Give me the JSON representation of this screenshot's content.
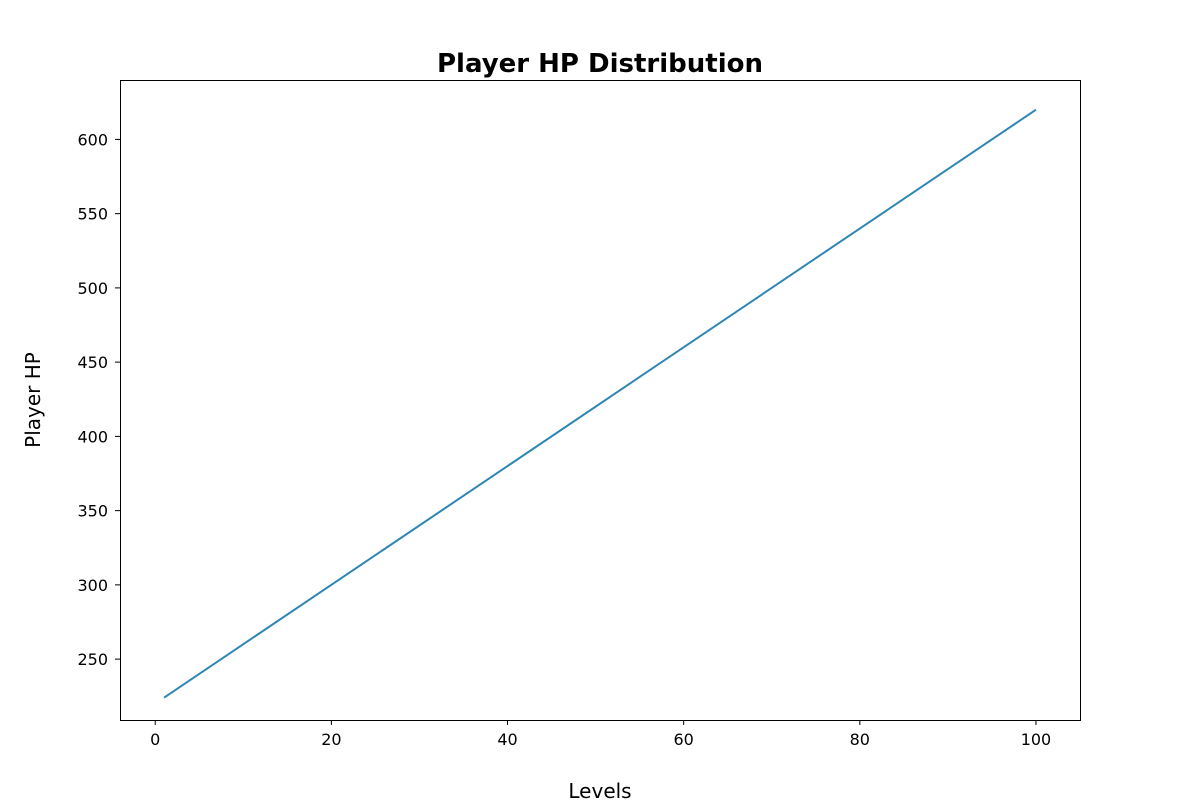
{
  "chart_data": {
    "type": "line",
    "title": "Player HP Distribution",
    "xlabel": "Levels",
    "ylabel": "Player HP",
    "xlim": [
      -4,
      105
    ],
    "ylim": [
      209,
      640
    ],
    "xticks": [
      0,
      20,
      40,
      60,
      80,
      100
    ],
    "yticks": [
      250,
      300,
      350,
      400,
      450,
      500,
      550,
      600
    ],
    "grid": false,
    "series": [
      {
        "name": "Player HP",
        "color": "#2e86b4",
        "x": [
          1,
          100
        ],
        "values": [
          224,
          620
        ]
      }
    ]
  }
}
